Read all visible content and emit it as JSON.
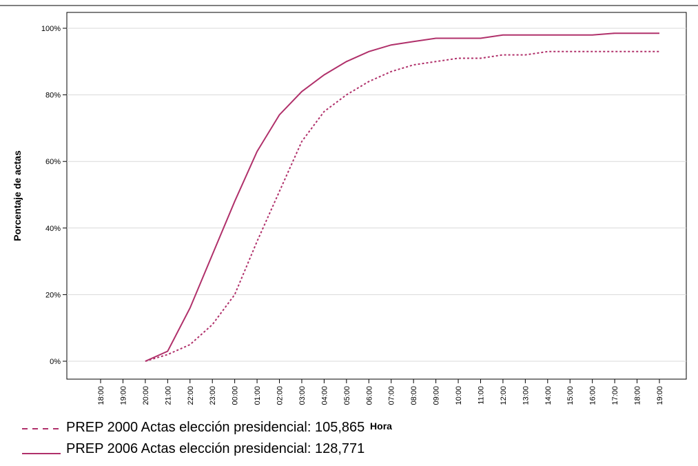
{
  "chart_data": {
    "type": "line",
    "xlabel": "Hora",
    "ylabel": "Porcentaje de actas",
    "categories": [
      "18:00",
      "19:00",
      "20:00",
      "21:00",
      "22:00",
      "23:00",
      "00:00",
      "01:00",
      "02:00",
      "03:00",
      "04:00",
      "05:00",
      "06:00",
      "07:00",
      "08:00",
      "09:00",
      "10:00",
      "11:00",
      "12:00",
      "13:00",
      "14:00",
      "15:00",
      "16:00",
      "17:00",
      "18:00",
      "19:00"
    ],
    "y_ticks": [
      "0%",
      "20%",
      "40%",
      "60%",
      "80%",
      "100%"
    ],
    "ylim": [
      0,
      100
    ],
    "grid": "horizontal",
    "legend_position": "bottom-left",
    "series": [
      {
        "name": "PREP 2000 Actas elección presidencial: 105,865",
        "style": "dashed",
        "color": "#b0306a",
        "values": [
          null,
          null,
          0,
          2,
          5,
          11,
          20,
          36,
          51,
          66,
          75,
          80,
          84,
          87,
          89,
          90,
          91,
          91,
          92,
          92,
          93,
          93,
          93,
          93,
          93,
          93
        ]
      },
      {
        "name": "PREP 2006 Actas elección presidencial: 128,771",
        "style": "solid",
        "color": "#b0306a",
        "values": [
          null,
          null,
          0,
          3,
          16,
          32,
          48,
          63,
          74,
          81,
          86,
          90,
          93,
          95,
          96,
          97,
          97,
          97,
          98,
          98,
          98,
          98,
          98,
          98.5,
          98.5,
          98.5
        ]
      }
    ]
  }
}
